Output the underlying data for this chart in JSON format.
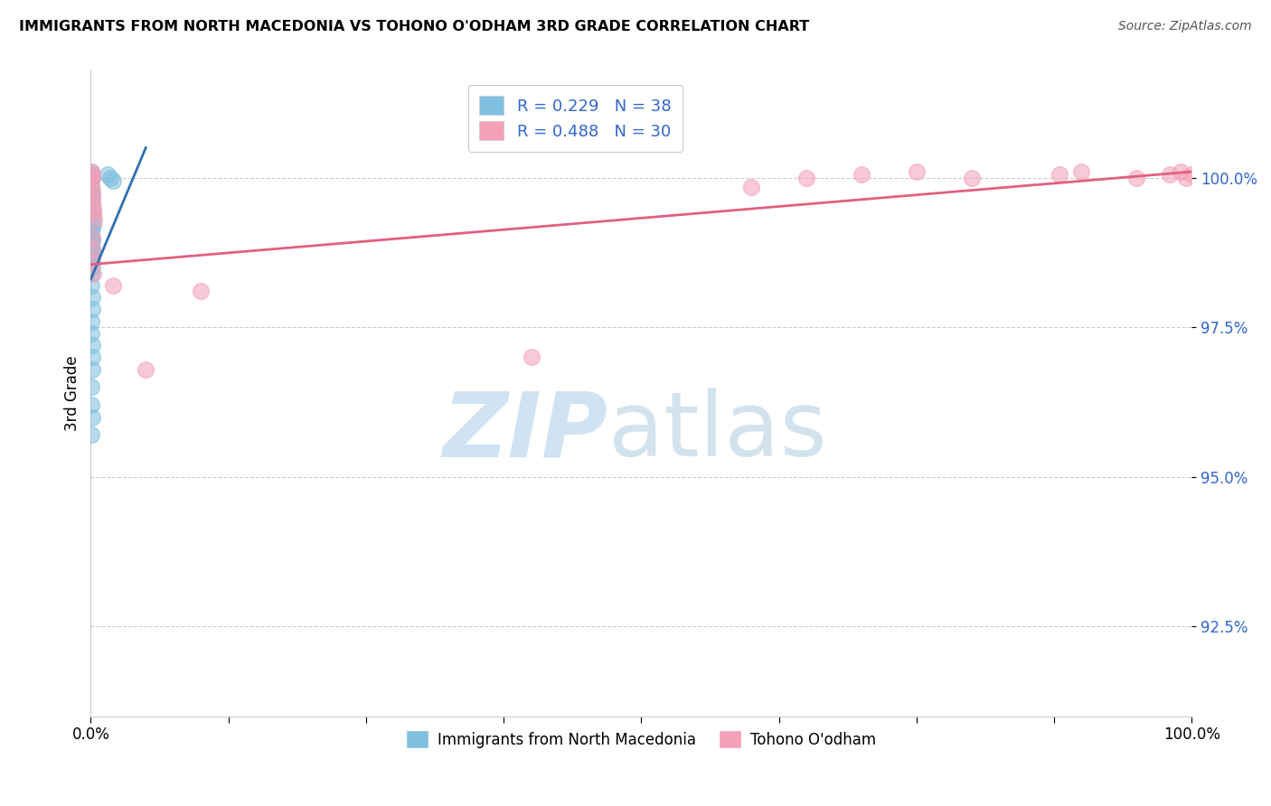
{
  "title": "IMMIGRANTS FROM NORTH MACEDONIA VS TOHONO O'ODHAM 3RD GRADE CORRELATION CHART",
  "source": "Source: ZipAtlas.com",
  "ylabel": "3rd Grade",
  "xlim": [
    0.0,
    100.0
  ],
  "ylim": [
    91.0,
    101.8
  ],
  "ytick_labels": [
    "92.5%",
    "95.0%",
    "97.5%",
    "100.0%"
  ],
  "ytick_values": [
    92.5,
    95.0,
    97.5,
    100.0
  ],
  "blue_color": "#7fbfdf",
  "pink_color": "#f4a0b8",
  "blue_line_color": "#3070b0",
  "pink_line_color": "#e06080",
  "blue_scatter_x": [
    0.05,
    0.08,
    0.1,
    0.05,
    0.06,
    0.08,
    0.1,
    0.12,
    0.15,
    0.18,
    0.2,
    0.22,
    0.1,
    0.12,
    0.14,
    0.08,
    0.06,
    0.1,
    0.12,
    0.05,
    0.08,
    0.1,
    0.14,
    0.16,
    0.05,
    0.06,
    0.08,
    0.1,
    1.5,
    1.8,
    2.0,
    0.08,
    0.1,
    0.12,
    0.06,
    0.08,
    0.1,
    0.05
  ],
  "blue_scatter_y": [
    100.1,
    100.05,
    100.0,
    99.85,
    99.8,
    99.75,
    99.7,
    99.6,
    99.5,
    99.4,
    99.3,
    99.2,
    99.0,
    98.8,
    98.6,
    98.4,
    98.2,
    98.0,
    97.8,
    97.6,
    97.4,
    97.2,
    97.0,
    96.8,
    99.1,
    98.9,
    98.7,
    98.5,
    100.05,
    100.0,
    99.95,
    99.15,
    98.95,
    98.75,
    96.5,
    96.2,
    96.0,
    95.7
  ],
  "pink_scatter_x": [
    0.08,
    0.1,
    0.12,
    0.08,
    0.1,
    0.12,
    0.15,
    0.2,
    0.25,
    0.3,
    2.0,
    0.1,
    0.12,
    0.15,
    0.2,
    5.0,
    10.0,
    40.0,
    60.0,
    65.0,
    70.0,
    75.0,
    80.0,
    88.0,
    90.0,
    95.0,
    98.0,
    99.0,
    99.5,
    100.0
  ],
  "pink_scatter_y": [
    100.1,
    100.05,
    100.0,
    99.9,
    99.8,
    99.7,
    99.6,
    99.5,
    99.4,
    99.3,
    98.2,
    99.0,
    98.8,
    98.6,
    98.4,
    96.8,
    98.1,
    97.0,
    99.85,
    100.0,
    100.05,
    100.1,
    100.0,
    100.05,
    100.1,
    100.0,
    100.05,
    100.1,
    100.0,
    100.05
  ],
  "blue_trend_x0": 0.0,
  "blue_trend_y0": 98.3,
  "blue_trend_x1": 5.0,
  "blue_trend_y1": 100.5,
  "pink_trend_x0": 0.0,
  "pink_trend_y0": 98.55,
  "pink_trend_x1": 100.0,
  "pink_trend_y1": 100.1,
  "legend1_text": "R = 0.229   N = 38",
  "legend2_text": "R = 0.488   N = 30",
  "bottom_legend1": "Immigrants from North Macedonia",
  "bottom_legend2": "Tohono O'odham"
}
